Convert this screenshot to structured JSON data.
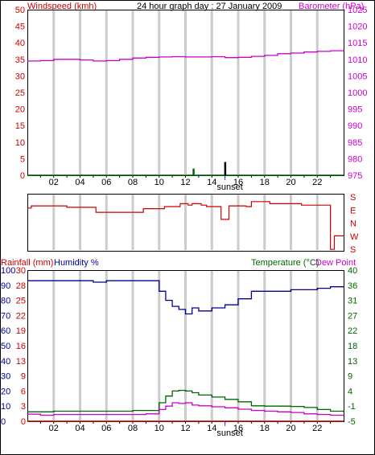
{
  "title": "24 hour graph day : 27 January 2009",
  "colors": {
    "frame": "#000000",
    "grid": "#cccccc",
    "wind": "#006600",
    "gust": "#000000",
    "barometer": "#cc00cc",
    "direction": "#cc0000",
    "rainfall": "#cc0000",
    "humidity": "#000099",
    "temperature": "#006600",
    "dewpoint": "#cc00cc",
    "sunset_marker": "#3333ff"
  },
  "x_axis": {
    "ticks": [
      "02",
      "04",
      "06",
      "08",
      "10",
      "12",
      "14",
      "16",
      "18",
      "20",
      "22"
    ],
    "sunset_label": "sunset"
  },
  "panel1": {
    "left_label": "Windspeed (kmh)",
    "right_label": "Barometer (hPa)",
    "left_ticks": [
      "0",
      "5",
      "10",
      "15",
      "20",
      "25",
      "30",
      "35",
      "40",
      "45",
      "50"
    ],
    "right_ticks": [
      "975",
      "980",
      "985",
      "990",
      "995",
      "1000",
      "1005",
      "1010",
      "1015",
      "1020",
      "1025"
    ]
  },
  "panel2": {
    "right_ticks": [
      "S",
      "E",
      "N",
      "W",
      "S"
    ]
  },
  "panel3": {
    "rainfall_label": "Rainfall (mm)",
    "humidity_label": "Humidity %",
    "temperature_label": "Temperature (°C)",
    "dewpoint_label": "Dew Point",
    "left_ticks_humidity": [
      "0",
      "10",
      "20",
      "30",
      "40",
      "50",
      "60",
      "70",
      "80",
      "90",
      "100"
    ],
    "left_ticks_rain": [
      "0",
      "3",
      "6",
      "9",
      "13",
      "16",
      "19",
      "22",
      "25",
      "28",
      "30"
    ],
    "right_ticks_temp": [
      "-5",
      "-1",
      "4",
      "9",
      "13",
      "18",
      "22",
      "27",
      "31",
      "36",
      "40"
    ]
  },
  "chart_data": [
    {
      "type": "line",
      "title": "24 hour graph day : 27 January 2009",
      "xlabel": "",
      "x": [
        0,
        1,
        2,
        3,
        4,
        5,
        6,
        7,
        8,
        9,
        10,
        11,
        12,
        13,
        14,
        15,
        16,
        17,
        18,
        19,
        20,
        21,
        22,
        23,
        24
      ],
      "series": [
        {
          "name": "Barometer (hPa)",
          "axis": "right",
          "values": [
            1009.5,
            1009.6,
            1010.0,
            1010.0,
            1009.8,
            1009.5,
            1009.6,
            1010.0,
            1010.4,
            1010.6,
            1010.7,
            1010.8,
            1010.7,
            1010.7,
            1010.8,
            1010.5,
            1010.6,
            1010.9,
            1011.2,
            1011.7,
            1011.9,
            1012.2,
            1012.4,
            1012.6,
            1012.8
          ]
        },
        {
          "name": "Windspeed (kmh)",
          "axis": "left",
          "values": [
            0,
            0,
            0,
            0,
            0,
            0,
            0,
            0,
            0,
            0,
            0,
            0,
            0,
            0,
            0,
            0,
            0,
            0,
            0,
            0,
            0,
            0,
            0,
            0,
            0
          ]
        }
      ],
      "gusts": [
        {
          "x": 12.6,
          "value": 2
        },
        {
          "x": 15.0,
          "value": 4
        }
      ],
      "ylim_left": [
        0,
        50
      ],
      "ylim_right": [
        975,
        1025
      ],
      "grid": true
    },
    {
      "type": "line",
      "title": "",
      "x": [
        0,
        0.3,
        2.8,
        3.0,
        5.0,
        5.2,
        8.6,
        8.8,
        10.2,
        10.4,
        11.3,
        11.6,
        12.2,
        12.5,
        13.2,
        13.6,
        14.5,
        14.7,
        15.0,
        15.3,
        15.6,
        16.6,
        17.0,
        17.4,
        18.0,
        18.4,
        20.4,
        20.8,
        21.0,
        22.8,
        23.0,
        23.1,
        23.3,
        24
      ],
      "series": [
        {
          "name": "Wind direction",
          "values": [
            3.0,
            3.15,
            3.15,
            3.05,
            3.05,
            2.7,
            2.7,
            2.95,
            2.95,
            3.1,
            3.1,
            3.3,
            3.2,
            3.3,
            3.2,
            3.1,
            3.1,
            2.2,
            2.2,
            3.15,
            3.15,
            3.1,
            3.45,
            3.45,
            3.45,
            3.3,
            3.3,
            3.2,
            3.2,
            3.2,
            0.1,
            0.1,
            1.05,
            1.05
          ]
        }
      ],
      "ylim": [
        0,
        4
      ],
      "ytick_labels": [
        "S",
        "E",
        "N",
        "W",
        "S"
      ],
      "grid": true
    },
    {
      "type": "line",
      "title": "",
      "x": [
        0,
        1,
        2,
        3,
        4,
        5,
        6,
        7,
        8,
        9,
        10,
        10.5,
        11,
        11.5,
        12,
        12.5,
        13,
        14,
        15,
        16,
        17,
        18,
        19,
        20,
        21,
        22,
        23,
        24
      ],
      "series": [
        {
          "name": "Humidity %",
          "axis": "left",
          "values": [
            93,
            93,
            93,
            93,
            93,
            92,
            93,
            93,
            93,
            93,
            86,
            80,
            76,
            74,
            71,
            75,
            73,
            75,
            77,
            81,
            86,
            86,
            86,
            87,
            87,
            88,
            89,
            89
          ]
        },
        {
          "name": "Rainfall (mm)",
          "axis": "left",
          "values": [
            0,
            0,
            0,
            0,
            0,
            0,
            0,
            0,
            0,
            0,
            0,
            0,
            0,
            0,
            0,
            0,
            0,
            0,
            0,
            0,
            0,
            0,
            0,
            0,
            0,
            0,
            0,
            0
          ]
        },
        {
          "name": "Temperature (°C)",
          "axis": "right",
          "values": [
            -2.2,
            -2.2,
            -2.0,
            -2.0,
            -2.0,
            -2.0,
            -2.0,
            -2.0,
            -1.8,
            -1.8,
            0.5,
            2.5,
            4.0,
            4.2,
            4.0,
            3.5,
            2.8,
            2.2,
            1.5,
            0.8,
            -0.4,
            -0.5,
            -0.5,
            -0.6,
            -0.9,
            -1.5,
            -2.0,
            -2.3
          ]
        },
        {
          "name": "Dew Point",
          "axis": "right",
          "values": [
            -2.9,
            -3.2,
            -3.0,
            -3.0,
            -3.0,
            -3.0,
            -3.0,
            -3.0,
            -3.0,
            -2.8,
            -1.5,
            -0.5,
            0.5,
            0.3,
            0.5,
            -0.2,
            -0.4,
            -0.7,
            -1.0,
            -1.4,
            -1.8,
            -2.0,
            -2.2,
            -2.4,
            -2.8,
            -3.0,
            -3.2,
            -3.2
          ]
        }
      ],
      "ylim_left": [
        0,
        100
      ],
      "ylim_right": [
        -5,
        40
      ],
      "grid": true
    }
  ]
}
